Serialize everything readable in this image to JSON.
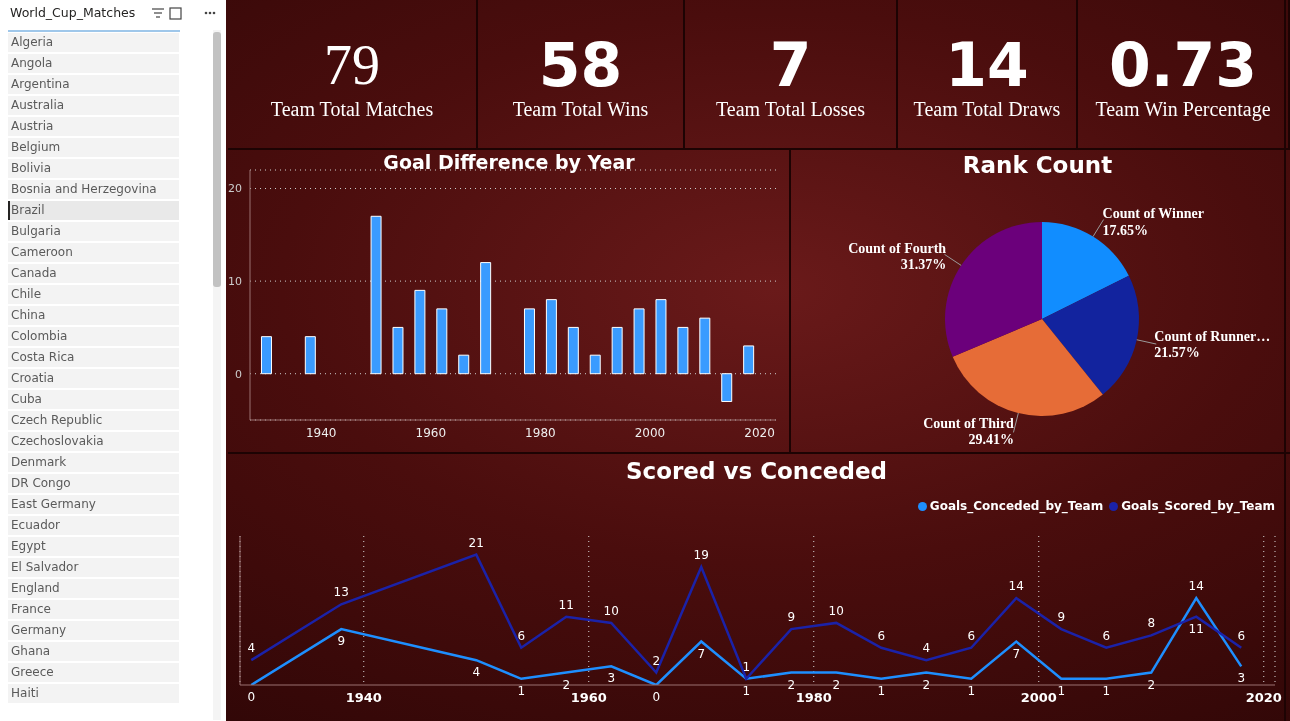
{
  "slicer": {
    "title": "World_Cup_Matches",
    "items": [
      "Algeria",
      "Angola",
      "Argentina",
      "Australia",
      "Austria",
      "Belgium",
      "Bolivia",
      "Bosnia and Herzegovina",
      "Brazil",
      "Bulgaria",
      "Cameroon",
      "Canada",
      "Chile",
      "China",
      "Colombia",
      "Costa Rica",
      "Croatia",
      "Cuba",
      "Czech Republic",
      "Czechoslovakia",
      "Denmark",
      "DR Congo",
      "East Germany",
      "Ecuador",
      "Egypt",
      "El Salvador",
      "England",
      "France",
      "Germany",
      "Ghana",
      "Greece",
      "Haiti"
    ],
    "selected": "Brazil"
  },
  "cards": [
    {
      "value": 79,
      "label": "Team Total Matches"
    },
    {
      "value": 58,
      "label": "Team Total Wins"
    },
    {
      "value": 7,
      "label": "Team Total Losses"
    },
    {
      "value": 14,
      "label": "Team Total Draws"
    },
    {
      "value": 0.73,
      "label": "Team Win Percentage"
    }
  ],
  "chart_data": [
    {
      "type": "bar",
      "title": "Goal Difference by Year",
      "x": [
        1930,
        1938,
        1950,
        1954,
        1958,
        1962,
        1966,
        1970,
        1974,
        1978,
        1982,
        1986,
        1990,
        1994,
        1998,
        2002,
        2006,
        2010,
        2014,
        2018
      ],
      "values": [
        4,
        4,
        17,
        5,
        9,
        7,
        2,
        12,
        0,
        7,
        8,
        5,
        2,
        5,
        7,
        8,
        5,
        6,
        -3,
        3
      ],
      "color": "#3A9BFF",
      "xlim": [
        1927,
        2023
      ],
      "xticks": [
        1940,
        1960,
        1980,
        2000,
        2020
      ],
      "ylim": [
        -5,
        22
      ],
      "yticks": [
        0,
        10,
        20
      ],
      "grid": true
    },
    {
      "type": "pie",
      "title": "Rank Count",
      "categories": [
        "Count of Winner",
        "Count of Runner…",
        "Count of Third",
        "Count of Fourth"
      ],
      "values": [
        17.65,
        21.57,
        29.41,
        31.37
      ],
      "value_labels": [
        "17.65%",
        "21.57%",
        "29.41%",
        "31.37%"
      ],
      "colors": [
        "#118DFF",
        "#12239E",
        "#E66C37",
        "#6B007B"
      ],
      "data_labels": true
    },
    {
      "type": "line",
      "title": "Scored vs Conceded",
      "x": [
        1930,
        1938,
        1950,
        1954,
        1958,
        1962,
        1966,
        1970,
        1974,
        1978,
        1982,
        1986,
        1990,
        1994,
        1998,
        2002,
        2006,
        2010,
        2014,
        2018
      ],
      "series": [
        {
          "name": "Goals_Conceded_by_Team",
          "color": "#1E8FFF",
          "values": [
            0,
            9,
            4,
            1,
            2,
            3,
            0,
            7,
            1,
            2,
            2,
            1,
            2,
            1,
            7,
            1,
            1,
            2,
            14,
            3
          ]
        },
        {
          "name": "Goals_Scored_by_Team",
          "color": "#1B22A8",
          "values": [
            4,
            13,
            21,
            6,
            11,
            10,
            2,
            19,
            1,
            9,
            10,
            6,
            4,
            6,
            14,
            9,
            6,
            8,
            11,
            6
          ]
        }
      ],
      "xlim": [
        1929,
        2021
      ],
      "xticks": [
        1940,
        1960,
        1980,
        2000,
        2020
      ],
      "ylim": [
        0,
        24
      ],
      "grid": true,
      "legend": "top-right",
      "data_labels": true,
      "tick_labels": "x"
    }
  ]
}
